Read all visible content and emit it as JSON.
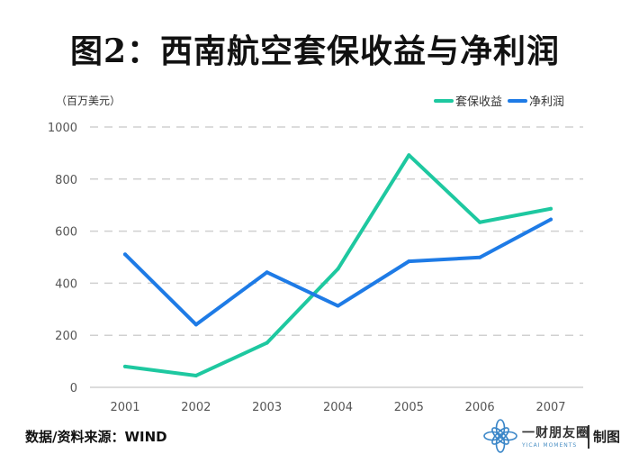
{
  "title": "图2：西南航空套保收益与净利润",
  "source": "数据/资料来源：WIND",
  "brand": {
    "name": "一财朋友圈",
    "sub": "YICAI MOMENTS",
    "tag": "制图"
  },
  "colors": {
    "hedge": "#1ec8a0",
    "profit": "#1e7be6",
    "grid": "#d0d0d0",
    "axis": "#c8c8c8",
    "tick": "#555555"
  },
  "chart_data": {
    "type": "line",
    "unit_label": "（百万美元）",
    "categories": [
      "2001",
      "2002",
      "2003",
      "2004",
      "2005",
      "2006",
      "2007"
    ],
    "ylim": [
      0,
      1000
    ],
    "yticks": [
      0,
      200,
      400,
      600,
      800,
      1000
    ],
    "legend_position": "top-right",
    "series": [
      {
        "name": "套保收益",
        "color_key": "hedge",
        "values": [
          80,
          45,
          171,
          455,
          892,
          634,
          686
        ]
      },
      {
        "name": "净利润",
        "color_key": "profit",
        "values": [
          511,
          241,
          442,
          313,
          484,
          499,
          645
        ]
      }
    ]
  }
}
